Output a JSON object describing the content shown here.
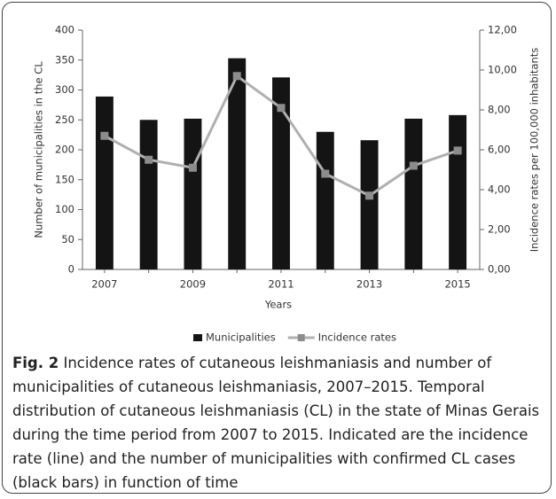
{
  "chart_data": {
    "type": "bar",
    "categories": [
      "2007",
      null,
      "2009",
      null,
      "2011",
      null,
      "2013",
      null,
      "2015"
    ],
    "series": [
      {
        "name": "Municipalities",
        "type": "bar",
        "color": "#141414",
        "values": [
          289,
          250,
          252,
          353,
          321,
          230,
          216,
          252,
          258
        ]
      },
      {
        "name": "Incidence rates",
        "type": "line",
        "axis": "y2",
        "color": "#b0b0b0",
        "marker_color": "#8c8c8c",
        "values": [
          6.7,
          5.5,
          5.1,
          9.7,
          8.1,
          4.8,
          3.7,
          5.2,
          5.96
        ]
      }
    ],
    "ylim": [
      0,
      400
    ],
    "yticks": [
      0,
      50,
      100,
      150,
      200,
      250,
      300,
      350,
      400
    ],
    "y2lim": [
      0,
      12
    ],
    "y2ticks": [
      {
        "value": 0,
        "label": "0,00"
      },
      {
        "value": 2,
        "label": "2,00"
      },
      {
        "value": 4,
        "label": "4,00"
      },
      {
        "value": 6,
        "label": "6,00"
      },
      {
        "value": 8,
        "label": "8,00"
      },
      {
        "value": 10,
        "label": "10,00"
      },
      {
        "value": 12,
        "label": "12,00"
      }
    ],
    "xlabel": "Years",
    "ylabel": "Number of municipalities in the CL",
    "y2label": "Incidence rates per 100,000 inhabitants",
    "grid": false,
    "legend": "bottom"
  },
  "caption": {
    "label": "Fig. 2",
    "text": "Incidence rates of cutaneous leishmaniasis and number of municipalities of cutaneous leishmaniasis, 2007–2015. Temporal distribution of cutaneous leishmaniasis (CL) in the state of Minas Gerais during the time period from 2007 to 2015. Indicated are the incidence rate (line) and the number of municipalities with confirmed CL cases (black bars) in function of time"
  }
}
